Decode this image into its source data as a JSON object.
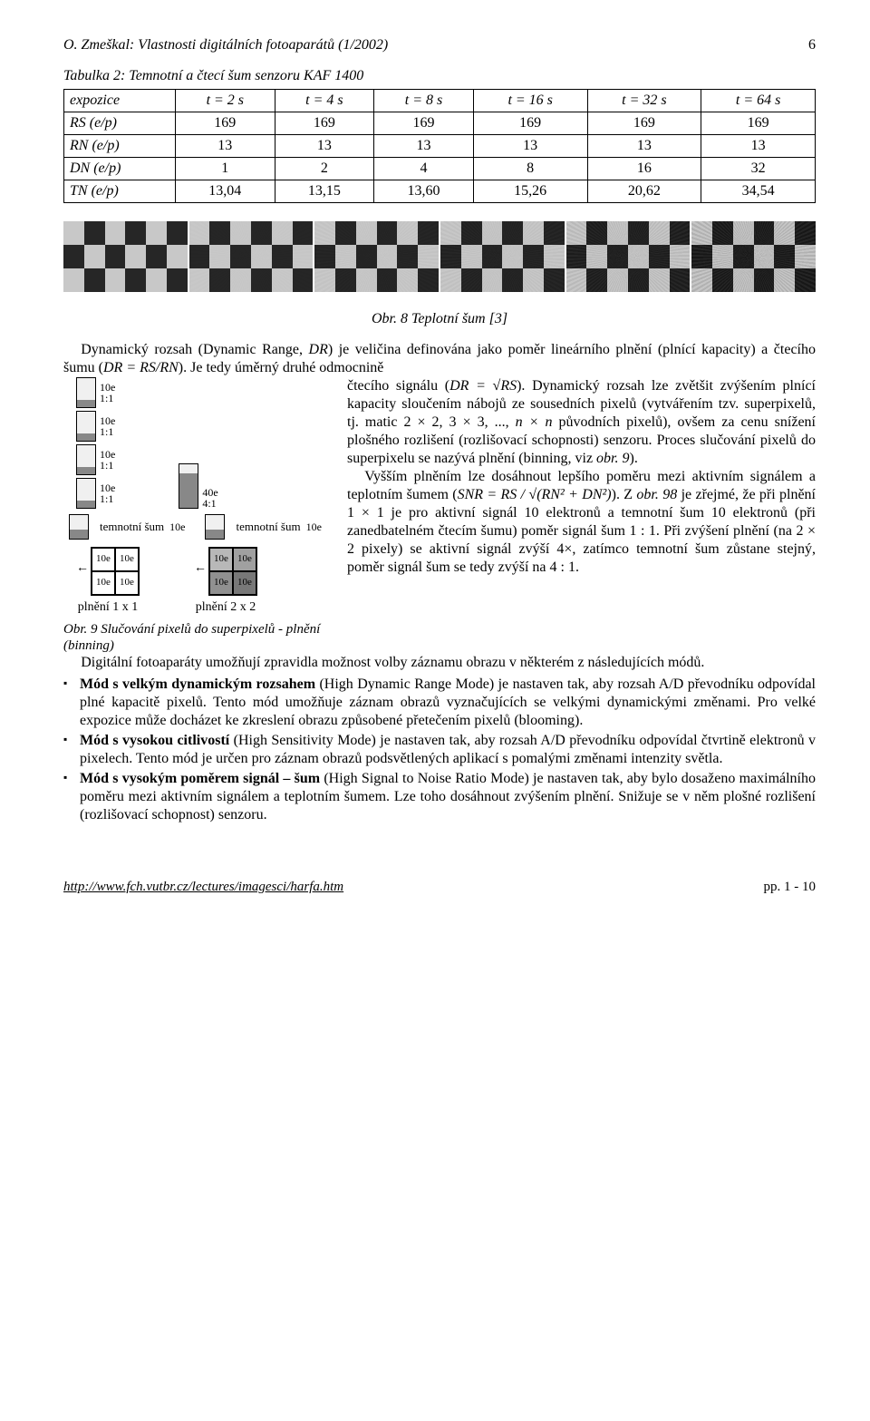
{
  "header": {
    "title": "O. Zmeškal: Vlastnosti digitálních fotoaparátů (1/2002)",
    "page": "6"
  },
  "table2": {
    "caption": "Tabulka 2: Temnotní a čtecí šum senzoru KAF 1400",
    "columns": [
      "expozice",
      "t = 2 s",
      "t = 4 s",
      "t = 8 s",
      "t = 16 s",
      "t = 32 s",
      "t = 64 s"
    ],
    "rows": [
      {
        "label": "RS (e/p)",
        "vals": [
          "169",
          "169",
          "169",
          "169",
          "169",
          "169"
        ]
      },
      {
        "label": "RN (e/p)",
        "vals": [
          "13",
          "13",
          "13",
          "13",
          "13",
          "13"
        ]
      },
      {
        "label": "DN (e/p)",
        "vals": [
          "1",
          "2",
          "4",
          "8",
          "16",
          "32"
        ]
      },
      {
        "label": "TN (e/p)",
        "vals": [
          "13,04",
          "13,15",
          "13,60",
          "15,26",
          "20,62",
          "34,54"
        ]
      }
    ]
  },
  "noise_strip": {
    "panels": 6,
    "checker_light": "#c8c8c8",
    "checker_dark": "#262626",
    "noise_overlay": [
      0.0,
      0.05,
      0.12,
      0.22,
      0.38,
      0.6
    ],
    "background": "#bdbdbd"
  },
  "fig8": {
    "caption": "Obr. 8 Teplotní šum [3]"
  },
  "intro": {
    "p1a": "Dynamický rozsah (Dynamic Range, ",
    "dr": "DR",
    "p1b": ") je veličina definována jako poměr lineárního plnění (plnící kapacity) a čtecího šumu (",
    "eq1": "DR = RS/RN",
    "p1c": "). Je tedy úměrný druhé odmocnině"
  },
  "fig9": {
    "well_labels": [
      "10e",
      "10e",
      "10e",
      "10e"
    ],
    "ratio1": "1:1",
    "big_well": "40e",
    "ratio4": "4:1",
    "dark_noise": "temnotní šum",
    "tens": "10e",
    "pix_vals": [
      "10e",
      "10e",
      "10e",
      "10e"
    ],
    "bin1": "plnění 1 x 1",
    "bin2": "plnění 2 x 2",
    "caption": "Obr. 9 Slučování pixelů do superpixelů - plnění (binning)"
  },
  "rightcol": {
    "l1a": "čtecího signálu (",
    "eq2": "DR = √RS",
    "l1b": "). Dynamický rozsah lze zvětšit zvýšením plnící kapacity sloučením nábojů ze sousedních pixelů (vytvářením tzv. superpixelů, tj. matic 2 × 2, 3 × 3, ..., ",
    "nn": "n × n",
    "l1c": " původních pixelů), ovšem za cenu snížení plošného rozlišení (rozlišovací schopnosti) senzoru. Proces slučování pixelů do superpixelu se nazývá plnění (binning, viz ",
    "obr9": "obr. 9",
    "l1d": ").",
    "l2a": "Vyšším plněním lze dosáhnout lepšího poměru mezi aktivním signálem a teplotním šumem (",
    "eq3": "SNR = RS / √(RN² + DN²)",
    "l2b": "). Z ",
    "obr98": "obr. 98",
    "l2c": " je zřejmé, že při plnění 1 × 1 je pro aktivní signál 10 elektronů a temnotní šum 10 elektronů (při zanedbatelném čtecím šumu) poměr signál šum 1 : 1. Při zvýšení plnění (na 2 × 2 pixely) se aktivní signál zvýší 4×, zatímco temnotní šum zůstane stejný, poměr signál šum se tedy zvýší na 4 : 1."
  },
  "below": {
    "p": "Digitální fotoaparáty umožňují zpravidla možnost volby záznamu obrazu v některém z následujících módů."
  },
  "modes": [
    {
      "name": "Mód s velkým dynamickým rozsahem",
      "eng": " (High Dynamic Range Mode) je nastaven tak, aby rozsah A/D převodníku odpovídal plné kapacitě pixelů. Tento mód umožňuje záznam obrazů vyznačujících se velkými dynamickými změnami. Pro velké expozice může docházet ke zkreslení obrazu způsobené přetečením pixelů (blooming)."
    },
    {
      "name": "Mód s vysokou citlivostí",
      "eng": " (High Sensitivity Mode) je nastaven tak, aby rozsah A/D převodníku odpovídal čtvrtině elektronů v pixelech. Tento mód je určen pro záznam obrazů podsvětlených aplikací s pomalými změnami intenzity světla."
    },
    {
      "name": "Mód s vysokým poměrem signál – šum",
      "eng": " (High Signal to Noise Ratio Mode) je nastaven tak, aby bylo dosaženo maximálního poměru mezi aktivním signálem a teplotním šumem. Lze toho dosáhnout zvýšením plnění. Snižuje se v něm plošné rozlišení (rozlišovací schopnost) senzoru."
    }
  ],
  "footer": {
    "url": "http://www.fch.vutbr.cz/lectures/imagesci/harfa.htm",
    "pp": "pp. 1 - 10"
  }
}
